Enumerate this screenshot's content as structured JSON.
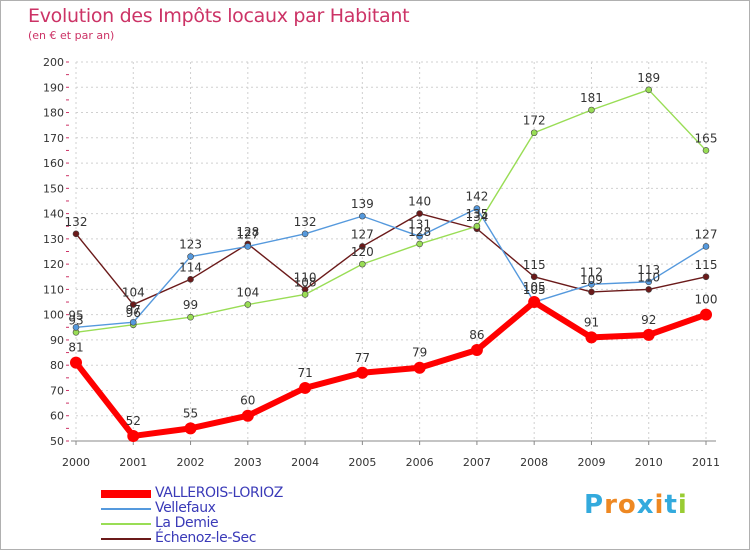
{
  "chart_data": {
    "type": "line",
    "title": "Evolution des Impôts locaux par Habitant",
    "subtitle": "(en € et par an)",
    "xlabel": "",
    "ylabel": "",
    "x": [
      "2000",
      "2001",
      "2002",
      "2003",
      "2004",
      "2005",
      "2006",
      "2007",
      "2008",
      "2009",
      "2010",
      "2011"
    ],
    "ylim": [
      50,
      200
    ],
    "yticks": [
      50,
      60,
      70,
      80,
      90,
      100,
      110,
      120,
      130,
      140,
      150,
      160,
      170,
      180,
      190,
      200
    ],
    "ytick_labels": [
      "50",
      "60",
      "70",
      "80",
      "90",
      "100",
      "110",
      "120",
      "130",
      "140",
      "150",
      "160",
      "170",
      "180",
      "190",
      "200"
    ],
    "grid": true,
    "legend_position": "bottom-left",
    "series": [
      {
        "name": "Échenoz-le-Sec",
        "color": "#6b1a1a",
        "values": [
          132,
          104,
          114,
          128,
          110,
          127,
          140,
          134,
          115,
          109,
          110,
          115
        ],
        "labels": [
          "132",
          "104",
          "114",
          "128",
          "110",
          "127",
          "140",
          "134",
          "115",
          "109",
          "110",
          "115"
        ]
      },
      {
        "name": "La Demie",
        "color": "#99dd55",
        "values": [
          93,
          96,
          99,
          104,
          108,
          120,
          128,
          135,
          172,
          181,
          189,
          165
        ],
        "labels": [
          "93",
          "96",
          "99",
          "104",
          "108",
          "120",
          "128",
          "135",
          "172",
          "181",
          "189",
          "165"
        ]
      },
      {
        "name": "Vellefaux",
        "color": "#5599dd",
        "values": [
          95,
          97,
          123,
          127,
          132,
          139,
          131,
          142,
          105,
          112,
          113,
          127
        ],
        "labels": [
          "95",
          "97",
          "123",
          "127",
          "132",
          "139",
          "131",
          "142",
          "105",
          "112",
          "113",
          "127"
        ]
      },
      {
        "name": "VALLEROIS-LORIOZ",
        "color": "#ff0000",
        "values": [
          81,
          52,
          55,
          60,
          71,
          77,
          79,
          86,
          105,
          91,
          92,
          100
        ],
        "labels": [
          "81",
          "52",
          "55",
          "60",
          "71",
          "77",
          "79",
          "86",
          "105",
          "91",
          "92",
          "100"
        ]
      }
    ],
    "legend_order": [
      "VALLEROIS-LORIOZ",
      "Vellefaux",
      "La Demie",
      "Échenoz-le-Sec"
    ]
  },
  "logo": {
    "letters": [
      "P",
      "r",
      "o",
      "x",
      "i",
      "t",
      "i"
    ],
    "colors": [
      "#33aadd",
      "#ee8822",
      "#ee8822",
      "#33aadd",
      "#ee8822",
      "#33aadd",
      "#99cc33"
    ]
  }
}
